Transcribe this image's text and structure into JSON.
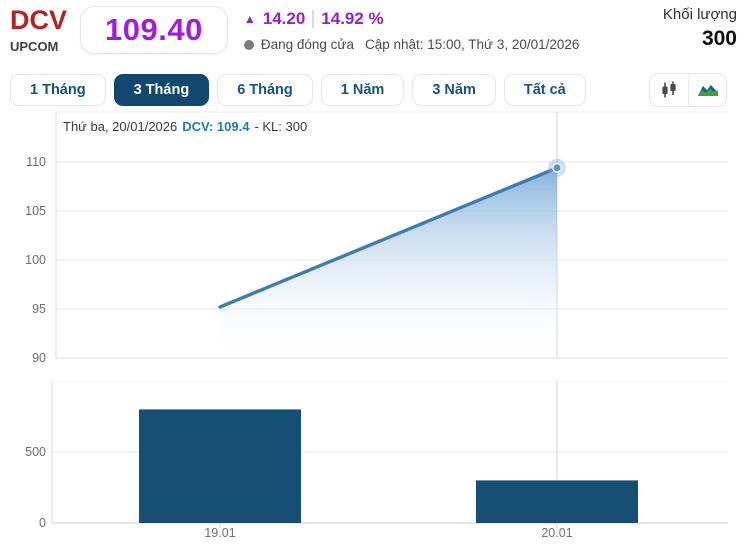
{
  "header": {
    "ticker": "DCV",
    "exchange": "UPCOM",
    "price": "109.40",
    "arrow": "▲",
    "change": "14.20",
    "change_percent": "14.92 %",
    "status": "Đang đóng cửa",
    "updated": "Cập nhật: 15:00, Thứ 3, 20/01/2026",
    "volume_label": "Khối lượng",
    "volume_value": "300"
  },
  "toolbar": {
    "tabs": [
      {
        "label": "1 Tháng",
        "active": false
      },
      {
        "label": "3 Tháng",
        "active": true
      },
      {
        "label": "6 Tháng",
        "active": false
      },
      {
        "label": "1 Năm",
        "active": false
      },
      {
        "label": "3 Năm",
        "active": false
      },
      {
        "label": "Tất cả",
        "active": false
      }
    ],
    "chart_types": [
      "candlestick",
      "area"
    ]
  },
  "tooltip": {
    "date": "Thứ ba, 20/01/2026",
    "price": "DCV: 109.4",
    "volume": "- KL: 300"
  },
  "chart_data": [
    {
      "type": "area",
      "title": "DCV price (3 months)",
      "x": [
        "19.01",
        "20.01"
      ],
      "values": [
        95.2,
        109.4
      ],
      "ylim": [
        90,
        115.1
      ],
      "yticks": [
        90,
        95,
        100,
        105,
        110
      ],
      "active_index": 1,
      "grid": true,
      "legend_position": "none"
    },
    {
      "type": "bar",
      "title": "DCV volume",
      "x": [
        "19.01",
        "20.01"
      ],
      "values": [
        800,
        300
      ],
      "ylim": [
        0,
        1000
      ],
      "yticks": [
        0,
        500
      ],
      "active_index": 1,
      "grid": true,
      "legend_position": "none"
    }
  ],
  "colors": {
    "ticker_red": "#b3231f",
    "ceiling_purple": "#a31be0",
    "change_purple": "#9320d6",
    "navy": "#12486f",
    "bar_navy": "#164e74",
    "line_blue": "#3e7cb1",
    "tooltip_blue": "#2778bd",
    "area_fill_top": "#79aad9",
    "grid": "#e7e7e7",
    "axis_text": "#6d6d6d",
    "icon_green": "#3fa142",
    "icon_blue": "#1e5f8e"
  }
}
